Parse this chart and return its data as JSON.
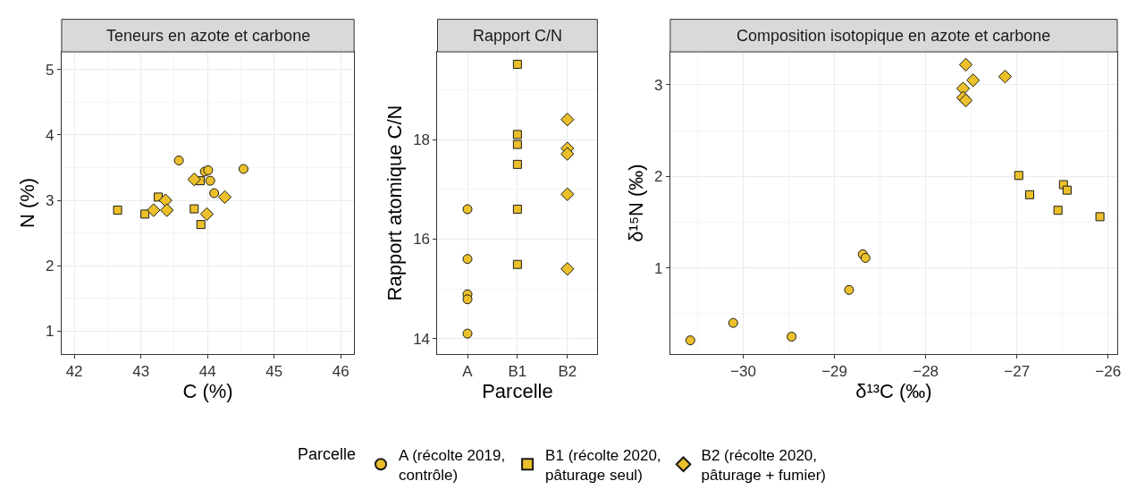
{
  "chart_data": [
    {
      "type": "scatter",
      "title": "Teneurs en azote et carbone",
      "xlabel": "C (%)",
      "ylabel": "N (%)",
      "xlim": [
        41.81,
        46.2
      ],
      "xticks": [
        42,
        43,
        44,
        45,
        46
      ],
      "ylim": [
        0.65,
        5.27
      ],
      "yticks": [
        1,
        2,
        3,
        4,
        5
      ],
      "grid": true,
      "legend": "bottom",
      "legend_title": "Parcelle",
      "series": [
        {
          "name": "A (récolte 2019, contrôle)",
          "color": "#ebc02a",
          "marker": "circle",
          "x": [
            43.57,
            43.96,
            44.01,
            44.04,
            44.1,
            44.54
          ],
          "values": [
            3.61,
            3.44,
            3.46,
            3.3,
            3.11,
            3.48
          ]
        },
        {
          "name": "B1 (récolte 2020, pâturage seul)",
          "color": "#ebc02a",
          "marker": "square",
          "x": [
            42.65,
            43.06,
            43.26,
            43.8,
            43.89,
            43.9
          ],
          "values": [
            2.85,
            2.79,
            3.05,
            2.87,
            3.3,
            2.63
          ]
        },
        {
          "name": "B2 (récolte 2020, pâturage + fumier)",
          "color": "#ebc02a",
          "marker": "diamond",
          "x": [
            43.19,
            43.37,
            43.39,
            43.8,
            43.99,
            44.26
          ],
          "values": [
            2.85,
            3.0,
            2.85,
            3.32,
            2.79,
            3.05
          ]
        }
      ]
    },
    {
      "type": "scatter",
      "title": "Rapport C/N",
      "xlabel": "Parcelle",
      "ylabel": "Rapport atomique C/N",
      "categories": [
        "A",
        "B1",
        "B2"
      ],
      "ylim": [
        13.69,
        19.76
      ],
      "yticks": [
        14,
        16,
        18
      ],
      "grid": true,
      "series": [
        {
          "name": "A (récolte 2019, contrôle)",
          "color": "#ebc02a",
          "marker": "circle",
          "x": [
            "A",
            "A",
            "A",
            "A",
            "A"
          ],
          "values": [
            16.6,
            15.6,
            14.89,
            14.79,
            14.1
          ]
        },
        {
          "name": "B1 (récolte 2020, pâturage seul)",
          "color": "#ebc02a",
          "marker": "square",
          "x": [
            "B1",
            "B1",
            "B1",
            "B1",
            "B1",
            "B1"
          ],
          "values": [
            19.51,
            18.1,
            17.9,
            17.5,
            16.6,
            15.49
          ]
        },
        {
          "name": "B2 (récolte 2020, pâturage + fumier)",
          "color": "#ebc02a",
          "marker": "diamond",
          "x": [
            "B2",
            "B2",
            "B2",
            "B2",
            "B2"
          ],
          "values": [
            18.4,
            17.82,
            17.71,
            16.9,
            15.4
          ]
        }
      ]
    },
    {
      "type": "scatter",
      "title": "Composition isotopique en azote et carbone",
      "xlabel": "δ¹³C (‰)",
      "ylabel": "δ¹⁵N (‰)",
      "xlim": [
        -30.8,
        -25.9
      ],
      "xticks": [
        {
          "value": -30,
          "label": "−30"
        },
        {
          "value": -29,
          "label": "−29"
        },
        {
          "value": -28,
          "label": "−28"
        },
        {
          "value": -27,
          "label": "−27"
        },
        {
          "value": -26,
          "label": "−26"
        }
      ],
      "ylim": [
        0.06,
        3.36
      ],
      "yticks": [
        1,
        2,
        3
      ],
      "grid": true,
      "series": [
        {
          "name": "A (récolte 2019, contrôle)",
          "color": "#ebc02a",
          "marker": "circle",
          "x": [
            -30.58,
            -30.11,
            -29.47,
            -28.84,
            -28.69,
            -28.66
          ],
          "values": [
            0.21,
            0.4,
            0.25,
            0.76,
            1.15,
            1.11
          ]
        },
        {
          "name": "B1 (récolte 2020, pâturage seul)",
          "color": "#ebc02a",
          "marker": "square",
          "x": [
            -26.98,
            -26.86,
            -26.55,
            -26.49,
            -26.45,
            -26.09
          ],
          "values": [
            2.01,
            1.8,
            1.63,
            1.91,
            1.85,
            1.56
          ]
        },
        {
          "name": "B2 (récolte 2020, pâturage + fumier)",
          "color": "#ebc02a",
          "marker": "diamond",
          "x": [
            -27.56,
            -27.48,
            -27.59,
            -27.59,
            -27.56,
            -27.13
          ],
          "values": [
            3.22,
            3.05,
            2.96,
            2.86,
            2.83,
            3.09
          ]
        }
      ]
    }
  ]
}
